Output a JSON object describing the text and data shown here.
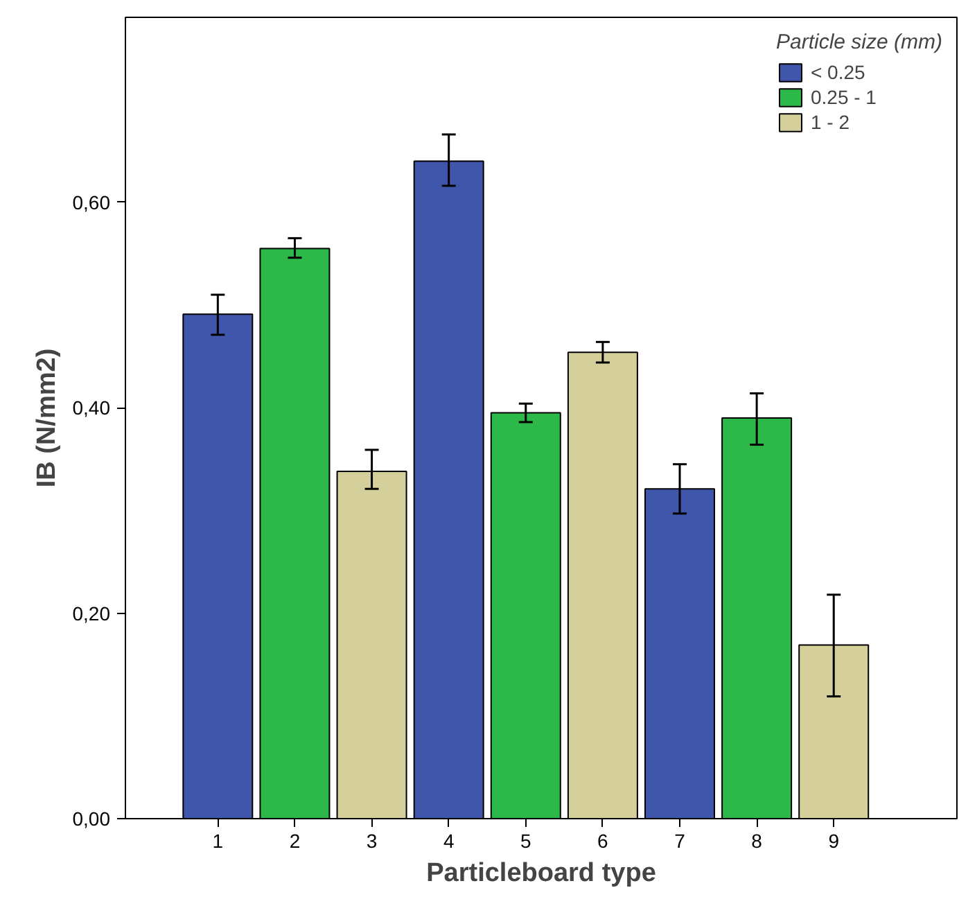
{
  "chart_data": {
    "type": "bar",
    "xlabel": "Particleboard type",
    "ylabel": "IB (N/mm2)",
    "legend_title": "Particle size (mm)",
    "categories": [
      "1",
      "2",
      "3",
      "4",
      "5",
      "6",
      "7",
      "8",
      "9"
    ],
    "series": [
      {
        "name": "< 0.25",
        "color": "#3f56aa",
        "values": [
          0.491,
          null,
          null,
          0.64,
          null,
          null,
          0.321,
          null,
          null
        ],
        "errors": [
          [
            0.471,
            0.51
          ],
          null,
          null,
          [
            0.616,
            0.666
          ],
          null,
          null,
          [
            0.297,
            0.345
          ],
          null,
          null
        ]
      },
      {
        "name": "0.25 - 1",
        "color": "#2db84a",
        "values": [
          null,
          0.555,
          null,
          null,
          0.395,
          null,
          null,
          0.39,
          null
        ],
        "errors": [
          null,
          [
            0.546,
            0.565
          ],
          null,
          null,
          [
            0.386,
            0.404
          ],
          null,
          null,
          [
            0.364,
            0.414
          ],
          null
        ]
      },
      {
        "name": "1 - 2",
        "color": "#d4cf9b",
        "values": [
          null,
          null,
          0.338,
          null,
          null,
          0.454,
          null,
          null,
          0.169
        ],
        "errors": [
          null,
          null,
          [
            0.321,
            0.359
          ],
          null,
          null,
          [
            0.444,
            0.464
          ],
          null,
          null,
          [
            0.119,
            0.218
          ]
        ]
      }
    ],
    "ylim": [
      0,
      0.78
    ],
    "yticks": [
      {
        "value": 0,
        "label": "0,00"
      },
      {
        "value": 0.2,
        "label": "0,20"
      },
      {
        "value": 0.4,
        "label": "0,40"
      },
      {
        "value": 0.6,
        "label": "0,60"
      }
    ],
    "grid": false,
    "legend": "top right"
  }
}
